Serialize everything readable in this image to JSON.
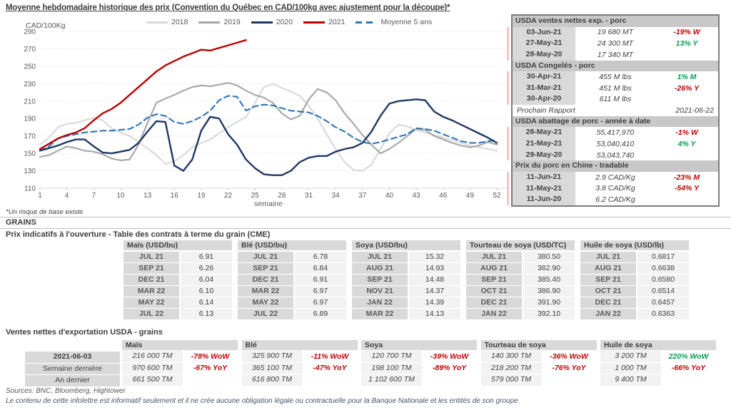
{
  "page": {
    "title": "Moyenne hebdomadaire historique des prix (Convention du Québec en CAD/100kg avec ajustement pour la découpe)*",
    "footnote": "*Un risque de base existe",
    "grains_heading": "GRAINS",
    "futures_heading": "Prix indicatifs à l'ouverture - Table des contrats à terme du grain (CME)",
    "export_heading": "Ventes nettes d'exportation USDA - grains",
    "sources": "Sources: BNC, Bloomberg, Hightower",
    "disclaimer": "Le contenu de cette infolettre est informatif seulement et il ne crée aucune obligation légale ou contractuelle pour la Banque Nationale et les entités de son groupe"
  },
  "colors": {
    "negative": "#c00000",
    "positive": "#00a050",
    "panel_border": "#7c7c7c",
    "header_gray": "#c8c8c8",
    "cell_gray": "#d9d9d9",
    "cell_light": "#f2f2f2"
  },
  "chart_data": {
    "type": "line",
    "title": "Moyenne hebdomadaire historique des prix (Convention du Québec en CAD/100kg avec ajustement pour la découpe)*",
    "xlabel": "semaine",
    "ylabel": "CAD/100Kg",
    "ylim": [
      110,
      290
    ],
    "ytick_step": 20,
    "xticks": [
      1,
      4,
      7,
      10,
      13,
      16,
      19,
      22,
      25,
      28,
      31,
      34,
      37,
      40,
      43,
      46,
      49,
      52
    ],
    "grid": "dotted-horizontal",
    "legend_position": "top",
    "series": [
      {
        "name": "2018",
        "color": "#d9d9d9",
        "style": "solid",
        "values": [
          160,
          168,
          180,
          184,
          185,
          188,
          191,
          188,
          179,
          174,
          170,
          163,
          156,
          148,
          138,
          141,
          148,
          157,
          162,
          166,
          173,
          180,
          186,
          192,
          208,
          226,
          230,
          225,
          221,
          216,
          205,
          190,
          172,
          155,
          140,
          131,
          130,
          137,
          155,
          173,
          183,
          181,
          177,
          174,
          171,
          168,
          165,
          162,
          159,
          157,
          155,
          153
        ]
      },
      {
        "name": "2019",
        "color": "#a6a6a6",
        "style": "solid",
        "values": [
          146,
          148,
          153,
          158,
          156,
          153,
          152,
          149,
          144,
          142,
          143,
          160,
          185,
          208,
          213,
          217,
          222,
          226,
          228,
          227,
          229,
          231,
          228,
          222,
          217,
          214,
          208,
          196,
          189,
          193,
          212,
          224,
          220,
          211,
          196,
          184,
          171,
          160,
          150,
          155,
          162,
          170,
          178,
          177,
          170,
          166,
          162,
          159,
          157,
          159,
          163,
          160
        ]
      },
      {
        "name": "2020",
        "color": "#1f3864",
        "style": "solid",
        "values": [
          153,
          156,
          159,
          163,
          166,
          166,
          158,
          151,
          150,
          152,
          154,
          162,
          175,
          187,
          186,
          136,
          130,
          143,
          176,
          192,
          190,
          172,
          160,
          143,
          133,
          126,
          125,
          125,
          130,
          140,
          145,
          147,
          147,
          152,
          155,
          157,
          162,
          175,
          193,
          207,
          210,
          211,
          212,
          211,
          198,
          192,
          188,
          183,
          178,
          173,
          168,
          162
        ]
      },
      {
        "name": "2021",
        "color": "#c00000",
        "style": "solid",
        "values": [
          155,
          161,
          167,
          171,
          174,
          179,
          188,
          196,
          201,
          208,
          217,
          226,
          235,
          244,
          251,
          256,
          261,
          265,
          269,
          268,
          271,
          274,
          277,
          280
        ]
      },
      {
        "name": "Moyenne 5 ans",
        "color": "#2e75b6",
        "style": "dashed",
        "values": [
          153,
          158,
          167,
          170,
          172,
          174,
          175,
          176,
          176,
          177,
          178,
          183,
          191,
          195,
          193,
          186,
          184,
          187,
          192,
          199,
          211,
          216,
          215,
          199,
          204,
          206,
          205,
          202,
          199,
          198,
          197,
          193,
          187,
          180,
          175,
          168,
          163,
          161,
          163,
          166,
          169,
          172,
          179,
          178,
          176,
          172,
          168,
          164,
          162,
          162,
          164,
          165
        ]
      }
    ]
  },
  "pork_panel": {
    "blocks": [
      {
        "type": "section",
        "header": "USDA ventes nettes exp. - porc",
        "rows": [
          {
            "date": "03-Jun-21",
            "value": "19 680  MT",
            "change": "-19% W",
            "change_color": "red"
          },
          {
            "date": "27-May-21",
            "value": "24 300  MT",
            "change": "13% Y",
            "change_color": "green"
          },
          {
            "date": "28-May-20",
            "value": "17 340  MT",
            "change": "",
            "change_color": ""
          }
        ]
      },
      {
        "type": "section",
        "header": "USDA Congelés - porc",
        "rows": [
          {
            "date": "30-Apr-21",
            "value": "455 M lbs",
            "change": "1% M",
            "change_color": "green"
          },
          {
            "date": "31-Mar-21",
            "value": "451 M lbs",
            "change": "-26% Y",
            "change_color": "red"
          },
          {
            "date": "30-Apr-20",
            "value": "611 M lbs",
            "change": "",
            "change_color": ""
          }
        ]
      },
      {
        "type": "note",
        "label": "Prochain Rapport",
        "value": "2021-06-22"
      },
      {
        "type": "section",
        "header": "USDA abattage de porc - année à date",
        "rows": [
          {
            "date": "28-May-21",
            "value": "55,417,970",
            "change": "-1% W",
            "change_color": "red"
          },
          {
            "date": "21-May-21",
            "value": "53,040,410",
            "change": "4% Y",
            "change_color": "green"
          },
          {
            "date": "29-May-20",
            "value": "53,043,740",
            "change": "",
            "change_color": ""
          }
        ]
      },
      {
        "type": "section",
        "header": "Prix du porc en Chine - tradable",
        "rows": [
          {
            "date": "11-Jun-21",
            "value": "2.9 CAD/Kg",
            "change": "-23% M",
            "change_color": "red"
          },
          {
            "date": "11-May-21",
            "value": "3.8 CAD/Kg",
            "change": "-54% Y",
            "change_color": "red"
          },
          {
            "date": "11-Jun-20",
            "value": "6.2 CAD/Kg",
            "change": "",
            "change_color": ""
          }
        ]
      }
    ]
  },
  "futures_table": {
    "groups": [
      {
        "header": "Maïs (USD/bu)",
        "rows": [
          [
            "JUL 21",
            "6.91"
          ],
          [
            "SEP 21",
            "6.26"
          ],
          [
            "DEC 21",
            "6.04"
          ],
          [
            "MAR 22",
            "6.10"
          ],
          [
            "MAY 22",
            "6.14"
          ],
          [
            "JUL 22",
            "6.13"
          ]
        ]
      },
      {
        "header": "Blé (USD/bu)",
        "rows": [
          [
            "JUL 21",
            "6.78"
          ],
          [
            "SEP 21",
            "6.84"
          ],
          [
            "DEC 21",
            "6.91"
          ],
          [
            "MAR 22",
            "6.97"
          ],
          [
            "MAY 22",
            "6.97"
          ],
          [
            "JUL 22",
            "6.89"
          ]
        ]
      },
      {
        "header": "Soya (USD/bu)",
        "rows": [
          [
            "JUL 21",
            "15.32"
          ],
          [
            "AUG 21",
            "14.93"
          ],
          [
            "SEP 21",
            "14.48"
          ],
          [
            "NOV 21",
            "14.37"
          ],
          [
            "JAN 22",
            "14.39"
          ],
          [
            "MAR 22",
            "14.13"
          ]
        ]
      },
      {
        "header": "Tourteau de soya (USD/TC)",
        "rows": [
          [
            "JUL 21",
            "380.50"
          ],
          [
            "AUG 21",
            "382.90"
          ],
          [
            "SEP 21",
            "385.40"
          ],
          [
            "OCT 21",
            "386.90"
          ],
          [
            "DEC 21",
            "391.90"
          ],
          [
            "JAN 22",
            "392.10"
          ]
        ]
      },
      {
        "header": "Huile de soya (USD/lb)",
        "rows": [
          [
            "JUL 21",
            "0.6817"
          ],
          [
            "AUG 21",
            "0.6638"
          ],
          [
            "SEP 21",
            "0.6580"
          ],
          [
            "OCT 21",
            "0.6514"
          ],
          [
            "DEC 21",
            "0.6457"
          ],
          [
            "JAN 22",
            "0.6363"
          ]
        ]
      }
    ]
  },
  "export_table": {
    "row_labels": [
      "2021-06-03",
      "Semaine dernière",
      "An dernier"
    ],
    "groups": [
      {
        "header": "Maïs",
        "rows": [
          {
            "value": "216 000 TM",
            "change": "-78% WoW",
            "change_color": "red"
          },
          {
            "value": "970 600 TM",
            "change": "-67% YoY",
            "change_color": "red"
          },
          {
            "value": "661 500 TM",
            "change": "",
            "change_color": ""
          }
        ]
      },
      {
        "header": "Blé",
        "rows": [
          {
            "value": "325 900 TM",
            "change": "-11% WoW",
            "change_color": "red"
          },
          {
            "value": "365 100 TM",
            "change": "-47% YoY",
            "change_color": "red"
          },
          {
            "value": "616 800 TM",
            "change": "",
            "change_color": ""
          }
        ]
      },
      {
        "header": "Soya",
        "rows": [
          {
            "value": "120 700 TM",
            "change": "-39% WoW",
            "change_color": "red"
          },
          {
            "value": "198 100 TM",
            "change": "-89% YoY",
            "change_color": "red"
          },
          {
            "value": "1 102 600 TM",
            "change": "",
            "change_color": ""
          }
        ]
      },
      {
        "header": "Tourteau de soya",
        "rows": [
          {
            "value": "140 300 TM",
            "change": "-36% WoW",
            "change_color": "red"
          },
          {
            "value": "218 200 TM",
            "change": "-76% YoY",
            "change_color": "red"
          },
          {
            "value": "579 000 TM",
            "change": "",
            "change_color": ""
          }
        ]
      },
      {
        "header": "Huile de soya",
        "rows": [
          {
            "value": "3 200 TM",
            "change": "220% WoW",
            "change_color": "green"
          },
          {
            "value": "1 000 TM",
            "change": "-66% YoY",
            "change_color": "red"
          },
          {
            "value": "9 400 TM",
            "change": "",
            "change_color": ""
          }
        ]
      }
    ]
  }
}
